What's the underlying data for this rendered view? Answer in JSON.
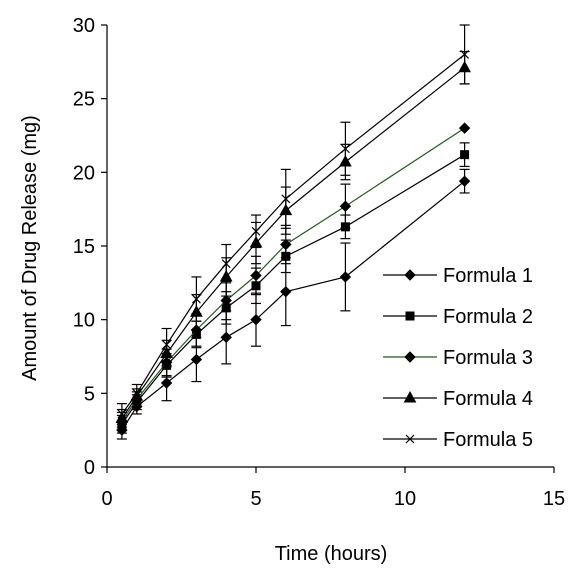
{
  "chart_data": {
    "type": "line",
    "title": "",
    "xlabel": "Time (hours)",
    "ylabel": "Amount of Drug Release (mg)",
    "xlim": [
      0,
      15
    ],
    "ylim": [
      0,
      30
    ],
    "xticks": [
      0,
      5,
      10,
      15
    ],
    "yticks": [
      0,
      5,
      10,
      15,
      20,
      25,
      30
    ],
    "grid": false,
    "legend_position": "lower-right",
    "x": [
      0.5,
      1,
      2,
      3,
      4,
      5,
      6,
      8,
      12
    ],
    "series": [
      {
        "name": "Formula 1",
        "marker": "diamond",
        "color": "#000000",
        "values": [
          2.5,
          4.1,
          5.7,
          7.3,
          8.8,
          10.0,
          11.9,
          12.9,
          19.4
        ],
        "errors": [
          0.6,
          0.5,
          1.2,
          1.5,
          1.8,
          1.8,
          2.3,
          2.3,
          0.8
        ]
      },
      {
        "name": "Formula 2",
        "marker": "square",
        "color": "#000000",
        "values": [
          2.9,
          4.4,
          6.9,
          9.0,
          10.8,
          12.3,
          14.3,
          16.3,
          21.2
        ],
        "errors": [
          0.6,
          0.5,
          0.8,
          0.9,
          1.1,
          1.2,
          1.1,
          0.8,
          0.8
        ]
      },
      {
        "name": "Formula 3",
        "marker": "diamond",
        "color": "#1e5b1e",
        "values": [
          3.1,
          4.6,
          7.1,
          9.3,
          11.3,
          13.0,
          15.1,
          17.7,
          23.0
        ],
        "errors": [
          0.6,
          0.5,
          0.9,
          1.1,
          1.3,
          1.3,
          1.3,
          1.5,
          0.0
        ]
      },
      {
        "name": "Formula 4",
        "marker": "triangle",
        "color": "#000000",
        "values": [
          3.3,
          4.8,
          7.7,
          10.5,
          12.9,
          15.2,
          17.4,
          20.7,
          27.1
        ],
        "errors": [
          0.6,
          0.5,
          0.9,
          1.2,
          1.3,
          1.4,
          1.6,
          1.2,
          1.1
        ]
      },
      {
        "name": "Formula 5",
        "marker": "x",
        "color": "#000000",
        "values": [
          3.6,
          5.0,
          8.3,
          11.4,
          13.8,
          16.0,
          18.2,
          21.6,
          28.0
        ],
        "errors": [
          0.7,
          0.6,
          1.1,
          1.5,
          1.3,
          1.1,
          2.0,
          1.8,
          2.0
        ]
      }
    ]
  }
}
